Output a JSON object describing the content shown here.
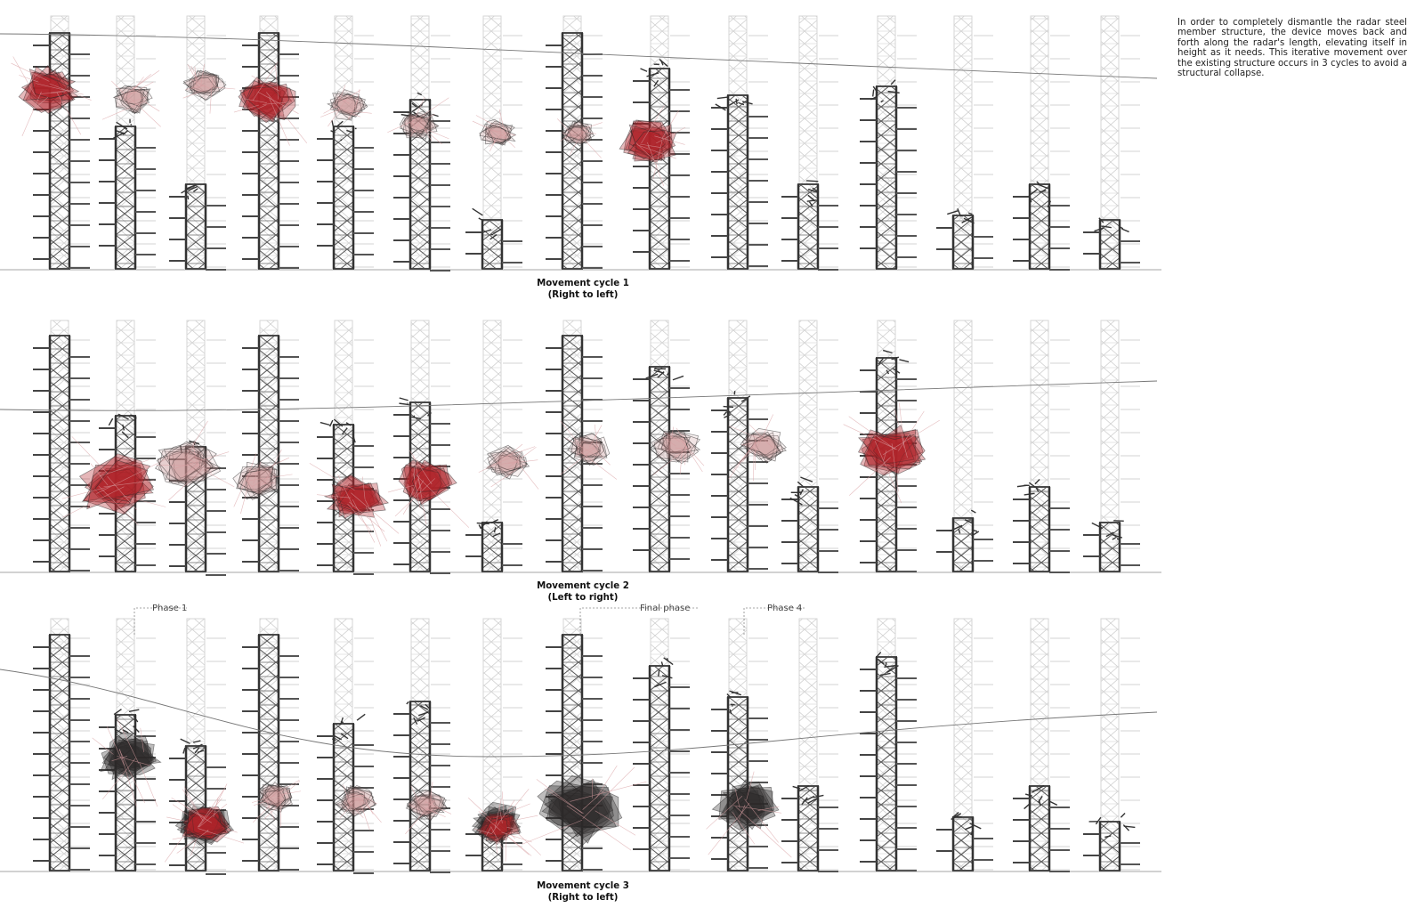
{
  "description": "In order to completely dismantle the radar steel member structure, the device moves back and forth along the radar's length, elevating itself in height as it needs. This iterative movement over the existing structure occurs in 3 cycles to avoid a structural collapse.",
  "cycles": [
    {
      "title": "Movement cycle 1",
      "direction": "(Right to left)"
    },
    {
      "title": "Movement cycle 2",
      "direction": "(Left to right)"
    },
    {
      "title": "Movement cycle 3",
      "direction": "(Right to left)"
    }
  ],
  "phase_labels": [
    "Phase 1",
    "Final phase",
    "Phase 4"
  ],
  "colors": {
    "tower": "#4a4a4a",
    "tower_ghost": "#d6d6d6",
    "device_red": "#b0232a",
    "device_pink": "#c98a8d",
    "device_dark": "#2e2a2b",
    "cable": "#d9a0a3"
  },
  "icons": [
    "tower-icon",
    "device-icon"
  ]
}
